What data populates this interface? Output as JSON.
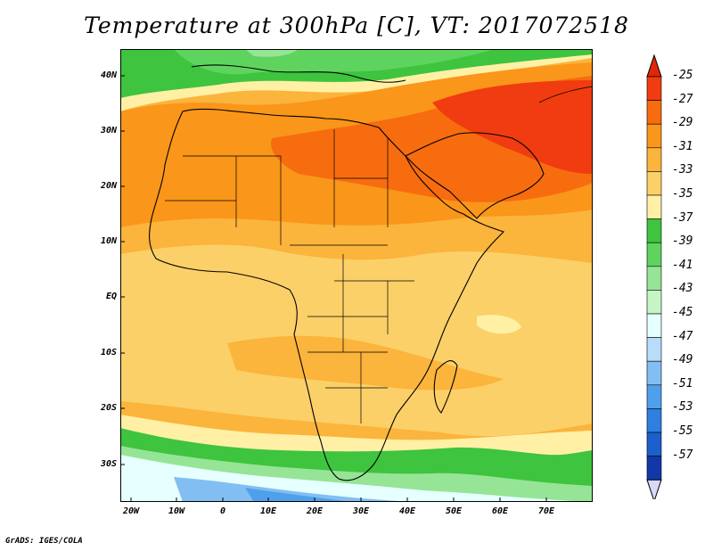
{
  "title": "Temperature at 300hPa [C], VT: 2017072518",
  "credit": "GrADS: IGES/COLA",
  "map": {
    "region": "Africa and Middle East",
    "variable": "Temperature at 300hPa",
    "lat_labels": [
      "40N",
      "30N",
      "20N",
      "10N",
      "EQ",
      "10S",
      "20S",
      "30S"
    ],
    "lon_labels": [
      "20W",
      "10W",
      "0",
      "10E",
      "20E",
      "30E",
      "40E",
      "50E",
      "60E",
      "70E"
    ]
  },
  "colorbar": {
    "labels": [
      "-25",
      "-27",
      "-29",
      "-31",
      "-33",
      "-35",
      "-37",
      "-39",
      "-41",
      "-43",
      "-45",
      "-47",
      "-49",
      "-51",
      "-53",
      "-55",
      "-57"
    ],
    "colors": [
      "#f03c10",
      "#f76c0f",
      "#fa9619",
      "#fbb43c",
      "#fcd068",
      "#fff0a6",
      "#3ec43e",
      "#5ed45e",
      "#96e496",
      "#c6f4c6",
      "#e6ffff",
      "#b8dcfa",
      "#82bef2",
      "#4fa0ec",
      "#2e7fe0",
      "#1c5fcc",
      "#1038a8"
    ],
    "top_color": "#e02808",
    "bottom_color": "#d8d8f8"
  }
}
